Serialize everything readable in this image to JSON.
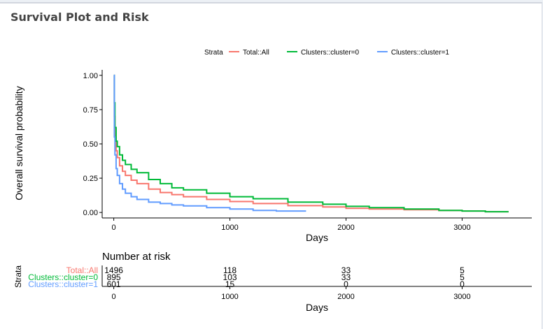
{
  "panel": {
    "title": "Survival Plot and Risk"
  },
  "chart_data": [
    {
      "type": "line",
      "step": true,
      "xlabel": "Days",
      "ylabel": "Overall survival probability",
      "xlim": [
        -100,
        3600
      ],
      "ylim": [
        -0.04,
        1.04
      ],
      "xticks": [
        0,
        1000,
        2000,
        3000
      ],
      "yticks": [
        0.0,
        0.25,
        0.5,
        0.75,
        1.0
      ],
      "ytick_labels": [
        "0.00",
        "0.25",
        "0.50",
        "0.75",
        "1.00"
      ],
      "grid": false,
      "legend": {
        "title": "Strata",
        "placement": "top",
        "entries": [
          "Total::All",
          "Clusters::cluster=0",
          "Clusters::cluster=1"
        ]
      },
      "series": [
        {
          "name": "Total::All",
          "color": "#F8766D",
          "x": [
            0,
            5,
            10,
            20,
            30,
            50,
            75,
            100,
            150,
            200,
            300,
            400,
            500,
            600,
            800,
            1000,
            1200,
            1500,
            1800,
            2000,
            2200,
            2500,
            2800,
            3000,
            3200,
            3400
          ],
          "y": [
            1.0,
            0.7,
            0.55,
            0.45,
            0.4,
            0.34,
            0.3,
            0.27,
            0.235,
            0.21,
            0.17,
            0.145,
            0.13,
            0.115,
            0.095,
            0.08,
            0.065,
            0.05,
            0.04,
            0.03,
            0.025,
            0.02,
            0.015,
            0.01,
            0.005,
            0.005
          ]
        },
        {
          "name": "Clusters::cluster=0",
          "color": "#00BA38",
          "x": [
            0,
            5,
            10,
            20,
            30,
            50,
            75,
            100,
            150,
            200,
            300,
            400,
            500,
            600,
            800,
            1000,
            1200,
            1500,
            1800,
            2000,
            2200,
            2500,
            2800,
            3000,
            3200,
            3400
          ],
          "y": [
            1.0,
            0.8,
            0.62,
            0.52,
            0.48,
            0.42,
            0.38,
            0.35,
            0.315,
            0.29,
            0.24,
            0.21,
            0.18,
            0.165,
            0.14,
            0.115,
            0.1,
            0.075,
            0.06,
            0.045,
            0.035,
            0.025,
            0.015,
            0.01,
            0.005,
            0.005
          ]
        },
        {
          "name": "Clusters::cluster=1",
          "color": "#619CFF",
          "x": [
            0,
            5,
            10,
            20,
            30,
            50,
            75,
            100,
            150,
            200,
            300,
            400,
            500,
            600,
            800,
            1000,
            1200,
            1400,
            1650
          ],
          "y": [
            1.0,
            0.55,
            0.42,
            0.32,
            0.27,
            0.21,
            0.17,
            0.14,
            0.115,
            0.095,
            0.075,
            0.065,
            0.055,
            0.048,
            0.035,
            0.025,
            0.015,
            0.01,
            0.005
          ]
        }
      ]
    },
    {
      "type": "table",
      "title": "Number at risk",
      "xlabel": "Days",
      "ylabel": "Strata",
      "xticks": [
        0,
        1000,
        2000,
        3000
      ],
      "rows": [
        {
          "name": "Total::All",
          "color": "#F8766D",
          "values": [
            "1496",
            "118",
            "33",
            "5"
          ]
        },
        {
          "name": "Clusters::cluster=0",
          "color": "#00BA38",
          "values": [
            "895",
            "103",
            "33",
            "5"
          ]
        },
        {
          "name": "Clusters::cluster=1",
          "color": "#619CFF",
          "values": [
            "601",
            "15",
            "0",
            "0"
          ]
        }
      ]
    }
  ]
}
